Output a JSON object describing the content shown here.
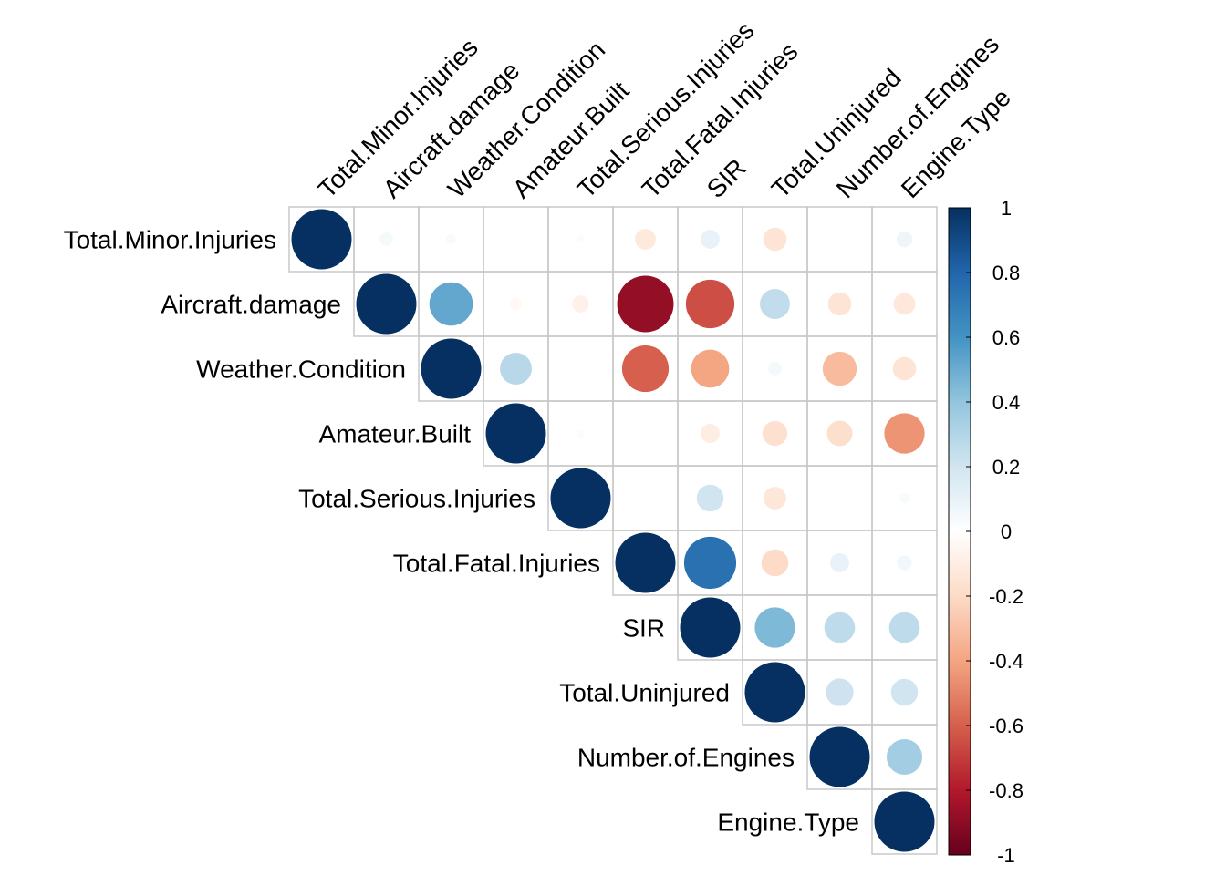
{
  "chart_data": {
    "type": "heatmap",
    "subtype": "correlation-matrix-upper-triangle-circles",
    "variables": [
      "Total.Minor.Injuries",
      "Aircraft.damage",
      "Weather.Condition",
      "Amateur.Built",
      "Total.Serious.Injuries",
      "Total.Fatal.Injuries",
      "SIR",
      "Total.Uninjured",
      "Number.of.Engines",
      "Engine.Type"
    ],
    "matrix": [
      [
        1.0,
        0.05,
        0.03,
        0.01,
        0.02,
        -0.12,
        0.1,
        -0.15,
        0.01,
        0.07
      ],
      [
        null,
        1.0,
        0.52,
        -0.04,
        -0.08,
        -0.88,
        -0.65,
        0.25,
        -0.15,
        -0.13
      ],
      [
        null,
        null,
        1.0,
        0.28,
        0.0,
        -0.6,
        -0.4,
        0.05,
        -0.32,
        -0.15
      ],
      [
        null,
        null,
        null,
        1.0,
        0.02,
        0.0,
        -0.1,
        -0.17,
        -0.18,
        -0.45
      ],
      [
        null,
        null,
        null,
        null,
        1.0,
        0.01,
        0.2,
        -0.14,
        0.0,
        0.03
      ],
      [
        null,
        null,
        null,
        null,
        null,
        1.0,
        0.75,
        -0.2,
        0.1,
        0.06
      ],
      [
        null,
        null,
        null,
        null,
        null,
        null,
        1.0,
        0.45,
        0.26,
        0.26
      ],
      [
        null,
        null,
        null,
        null,
        null,
        null,
        null,
        1.0,
        0.21,
        0.2
      ],
      [
        null,
        null,
        null,
        null,
        null,
        null,
        null,
        null,
        1.0,
        0.35
      ],
      [
        null,
        null,
        null,
        null,
        null,
        null,
        null,
        null,
        null,
        1.0
      ]
    ],
    "color_scale": {
      "range": [
        -1,
        1
      ],
      "ticks": [
        "1",
        "0.8",
        "0.6",
        "0.4",
        "0.2",
        "0",
        "-0.2",
        "-0.4",
        "-0.6",
        "-0.8",
        "-1"
      ],
      "stops": [
        {
          "value": -1.0,
          "color": "#67001F"
        },
        {
          "value": -0.8,
          "color": "#B2182B"
        },
        {
          "value": -0.6,
          "color": "#D6604D"
        },
        {
          "value": -0.4,
          "color": "#F4A582"
        },
        {
          "value": -0.2,
          "color": "#FDDBC7"
        },
        {
          "value": 0.0,
          "color": "#FFFFFF"
        },
        {
          "value": 0.2,
          "color": "#D1E5F0"
        },
        {
          "value": 0.4,
          "color": "#92C5DE"
        },
        {
          "value": 0.6,
          "color": "#4393C3"
        },
        {
          "value": 0.8,
          "color": "#2166AC"
        },
        {
          "value": 1.0,
          "color": "#053061"
        }
      ]
    },
    "grid": true,
    "grid_color": "#C8C8C8",
    "legend_placement": "right",
    "title": "",
    "xlabel": "",
    "ylabel": ""
  }
}
